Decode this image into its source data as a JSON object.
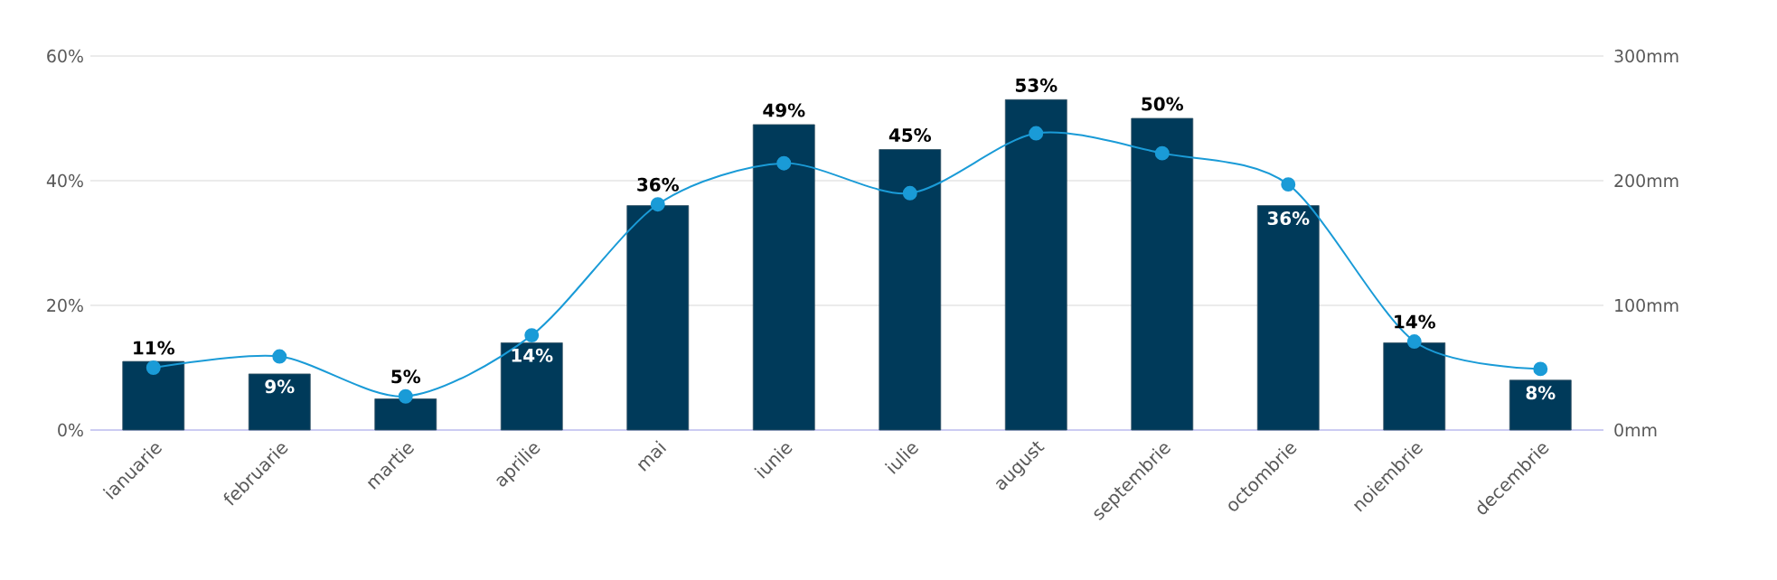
{
  "chart_data": {
    "type": "bar",
    "categories": [
      "ianuarie",
      "februarie",
      "martie",
      "aprilie",
      "mai",
      "iunie",
      "iulie",
      "august",
      "septembrie",
      "octombrie",
      "noiembrie",
      "decembrie"
    ],
    "series": [
      {
        "type": "bar",
        "color": "#003a5a",
        "values": [
          11,
          9,
          5,
          14,
          36,
          49,
          45,
          53,
          50,
          36,
          14,
          8
        ],
        "value_labels": [
          "11%",
          "9%",
          "5%",
          "14%",
          "36%",
          "49%",
          "45%",
          "53%",
          "50%",
          "36%",
          "14%",
          "8%"
        ]
      },
      {
        "type": "line",
        "axis": "y2",
        "color": "#1a9bd7",
        "marker": "circle",
        "line_style": "solid",
        "values": [
          50,
          59,
          27,
          76,
          181,
          214,
          190,
          238,
          222,
          197,
          71,
          49
        ]
      }
    ],
    "ylim": [
      0,
      60
    ],
    "yticks": [
      {
        "value": 0,
        "label": "0%"
      },
      {
        "value": 20,
        "label": "20%"
      },
      {
        "value": 40,
        "label": "40%"
      },
      {
        "value": 60,
        "label": "60%"
      }
    ],
    "y2lim": [
      0,
      300
    ],
    "y2ticks": [
      {
        "value": 0,
        "label": "0mm"
      },
      {
        "value": 100,
        "label": "100mm"
      },
      {
        "value": 200,
        "label": "200mm"
      },
      {
        "value": 300,
        "label": "300mm"
      }
    ],
    "grid": "y"
  }
}
